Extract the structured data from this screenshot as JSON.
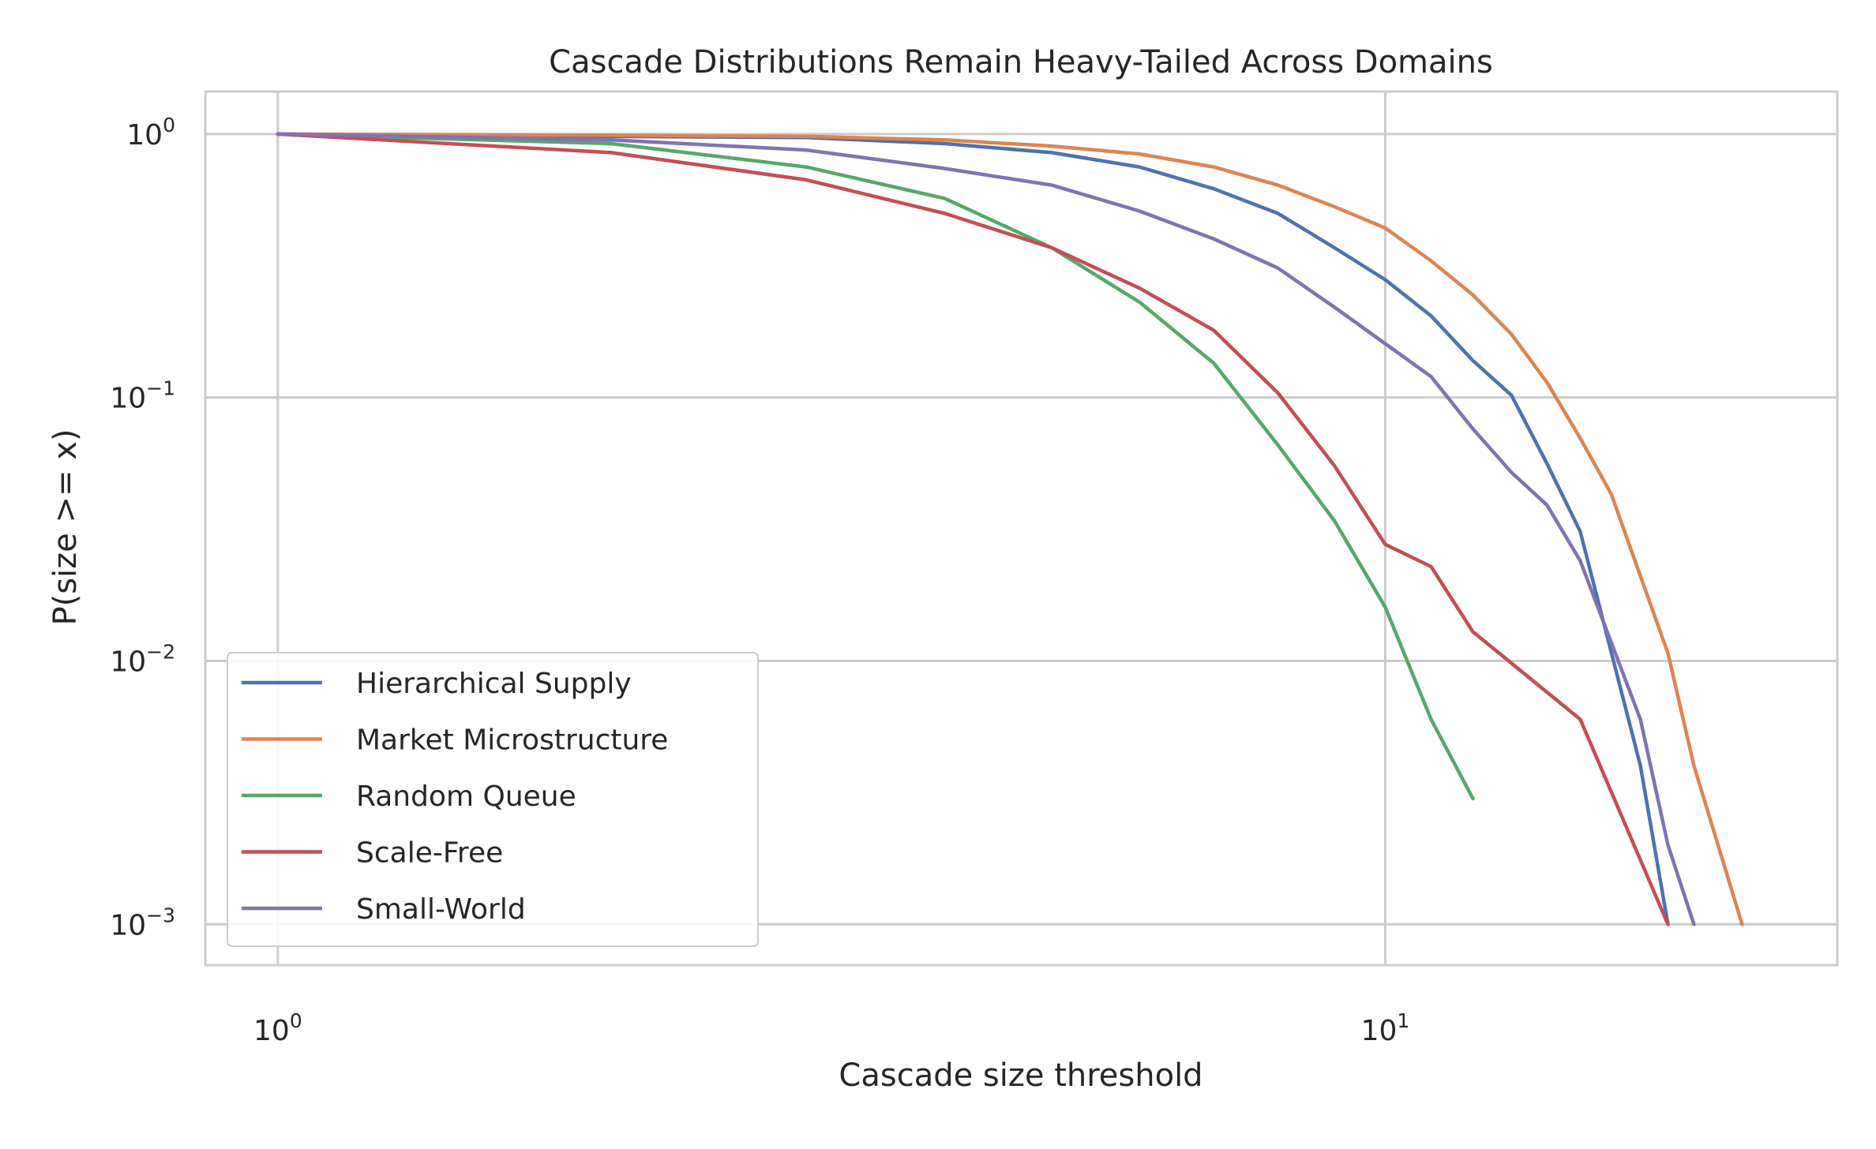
{
  "chart_data": {
    "type": "line",
    "title": "Cascade Distributions Remain Heavy-Tailed Across Domains",
    "xlabel": "Cascade size threshold",
    "ylabel": "P(size >= x)",
    "xscale": "log",
    "yscale": "log",
    "xlim": [
      0.86,
      25.6
    ],
    "ylim": [
      0.0007,
      1.45
    ],
    "grid": true,
    "legend_position": "lower-left",
    "xticks": [
      {
        "value": 1,
        "base": "10",
        "exp": "0"
      },
      {
        "value": 10,
        "base": "10",
        "exp": "1"
      }
    ],
    "yticks": [
      {
        "value": 1,
        "base": "10",
        "exp": "0"
      },
      {
        "value": 0.1,
        "base": "10",
        "exp": "−1"
      },
      {
        "value": 0.01,
        "base": "10",
        "exp": "−2"
      },
      {
        "value": 0.001,
        "base": "10",
        "exp": "−3"
      }
    ],
    "series": [
      {
        "name": "Hierarchical Supply",
        "color": "#4c72b0",
        "x": [
          1,
          2,
          3,
          4,
          5,
          6,
          7,
          8,
          9,
          10,
          11,
          12,
          13,
          14,
          15,
          17,
          18
        ],
        "y": [
          1.0,
          0.98,
          0.97,
          0.92,
          0.85,
          0.75,
          0.62,
          0.5,
          0.37,
          0.28,
          0.204,
          0.138,
          0.102,
          0.056,
          0.031,
          0.004,
          0.001
        ]
      },
      {
        "name": "Market Microstructure",
        "color": "#dd8452",
        "x": [
          1,
          2,
          3,
          4,
          5,
          6,
          7,
          8,
          9,
          10,
          11,
          12,
          13,
          14,
          15,
          16,
          17,
          18,
          19,
          21
        ],
        "y": [
          1.0,
          0.99,
          0.98,
          0.95,
          0.9,
          0.84,
          0.75,
          0.64,
          0.53,
          0.44,
          0.33,
          0.245,
          0.174,
          0.114,
          0.07,
          0.043,
          0.021,
          0.0107,
          0.004,
          0.001
        ]
      },
      {
        "name": "Random Queue",
        "color": "#55a868",
        "x": [
          1,
          2,
          3,
          4,
          5,
          6,
          7,
          8,
          9,
          10,
          11,
          12
        ],
        "y": [
          1.0,
          0.92,
          0.75,
          0.57,
          0.37,
          0.23,
          0.135,
          0.066,
          0.034,
          0.016,
          0.006,
          0.003
        ]
      },
      {
        "name": "Scale-Free",
        "color": "#c44e52",
        "x": [
          1,
          2,
          3,
          4,
          5,
          6,
          7,
          8,
          9,
          10,
          11,
          12,
          15,
          18
        ],
        "y": [
          1.0,
          0.85,
          0.67,
          0.5,
          0.37,
          0.26,
          0.18,
          0.104,
          0.055,
          0.0277,
          0.0228,
          0.0129,
          0.006,
          0.001
        ]
      },
      {
        "name": "Small-World",
        "color": "#8172b3",
        "x": [
          1,
          2,
          3,
          4,
          5,
          6,
          7,
          8,
          9,
          10,
          11,
          12,
          13,
          14,
          15,
          17,
          18,
          19
        ],
        "y": [
          1.0,
          0.95,
          0.87,
          0.74,
          0.64,
          0.51,
          0.4,
          0.31,
          0.22,
          0.16,
          0.12,
          0.076,
          0.052,
          0.039,
          0.024,
          0.006,
          0.002,
          0.001
        ]
      }
    ]
  }
}
